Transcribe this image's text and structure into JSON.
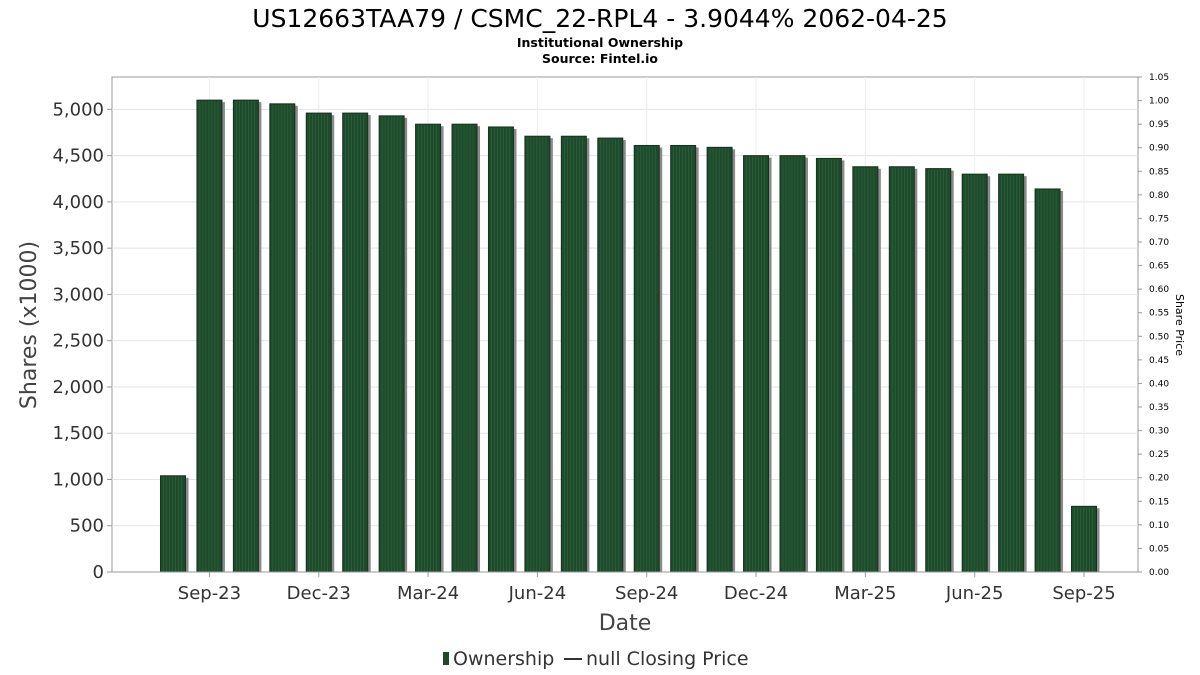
{
  "chart_data": {
    "type": "bar",
    "title": "US12663TAA79 / CSMC_22-RPL4 - 3.9044% 2062-04-25",
    "subtitle_lines": [
      "Institutional Ownership",
      "Source: Fintel.io"
    ],
    "xlabel": "Date",
    "ylabel": "Shares (x1000)",
    "y2label": "Share Price",
    "ylim": [
      0,
      5350
    ],
    "y2lim": [
      0,
      1.05
    ],
    "y_ticks": [
      0,
      500,
      1000,
      1500,
      2000,
      2500,
      3000,
      3500,
      4000,
      4500,
      5000
    ],
    "y_tick_labels": [
      "0",
      "500",
      "1,000",
      "1,500",
      "2,000",
      "2,500",
      "3,000",
      "3,500",
      "4,000",
      "4,500",
      "5,000"
    ],
    "y2_ticks": [
      0,
      0.05,
      0.1,
      0.15,
      0.2,
      0.25,
      0.3,
      0.35,
      0.4,
      0.45,
      0.5,
      0.55,
      0.6,
      0.65,
      0.7,
      0.75,
      0.8,
      0.85,
      0.9,
      0.95,
      1.0,
      1.05
    ],
    "y2_tick_labels": [
      "0.00",
      "0.05",
      "0.10",
      "0.15",
      "0.20",
      "0.25",
      "0.30",
      "0.35",
      "0.40",
      "0.45",
      "0.50",
      "0.55",
      "0.60",
      "0.65",
      "0.70",
      "0.75",
      "0.80",
      "0.85",
      "0.90",
      "0.95",
      "1.00",
      "1.05"
    ],
    "x_tick_labels": [
      "Sep-23",
      "Dec-23",
      "Mar-24",
      "Jun-24",
      "Sep-24",
      "Dec-24",
      "Mar-25",
      "Jun-25",
      "Sep-25"
    ],
    "grid": true,
    "legend_position": "bottom-center",
    "series": [
      {
        "name": "Ownership",
        "color": "#1f4a2c",
        "values": [
          1040,
          5100,
          5100,
          5060,
          4960,
          4960,
          4930,
          4840,
          4840,
          4810,
          4710,
          4710,
          4690,
          4610,
          4610,
          4590,
          4500,
          4500,
          4470,
          4380,
          4380,
          4360,
          4300,
          4300,
          4140,
          710
        ]
      },
      {
        "name": "null Closing Price",
        "color": "#333333",
        "values": []
      }
    ]
  }
}
